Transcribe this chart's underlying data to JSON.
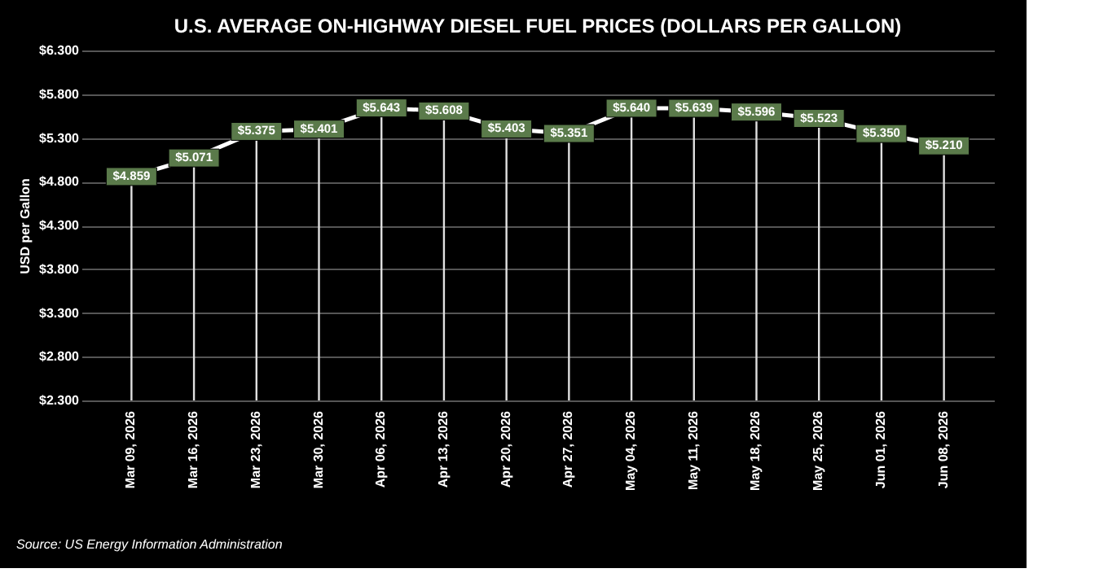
{
  "chart_data": {
    "type": "line",
    "title": "U.S. AVERAGE ON-HIGHWAY DIESEL FUEL PRICES (DOLLARS PER GALLON)",
    "ylabel": "USD per Gallon",
    "categories": [
      "Mar 09, 2026",
      "Mar 16, 2026",
      "Mar 23, 2026",
      "Mar 30, 2026",
      "Apr 06, 2026",
      "Apr 13, 2026",
      "Apr 20, 2026",
      "Apr 27, 2026",
      "May 04, 2026",
      "May 11, 2026",
      "May 18, 2026",
      "May 25, 2026",
      "Jun 01, 2026",
      "Jun 08, 2026"
    ],
    "series": [
      {
        "color": "#ffffff",
        "values": [
          4.859,
          5.071,
          5.375,
          5.401,
          5.643,
          5.608,
          5.403,
          5.351,
          5.64,
          5.639,
          5.596,
          5.523,
          5.35,
          5.21
        ],
        "value_labels": [
          "$4.859",
          "$5.071",
          "$5.375",
          "$5.401",
          "$5.643",
          "$5.608",
          "$5.403",
          "$5.351",
          "$5.640",
          "$5.639",
          "$5.596",
          "$5.523",
          "$5.350",
          "$5.210"
        ]
      }
    ],
    "ylim": [
      2.3,
      6.3
    ],
    "yticks": [
      {
        "value": 2.3,
        "label": "$2.300"
      },
      {
        "value": 2.8,
        "label": "$2.800"
      },
      {
        "value": 3.3,
        "label": "$3.300"
      },
      {
        "value": 3.8,
        "label": "$3.800"
      },
      {
        "value": 4.3,
        "label": "$4.300"
      },
      {
        "value": 4.8,
        "label": "$4.800"
      },
      {
        "value": 5.3,
        "label": "$5.300"
      },
      {
        "value": 5.8,
        "label": "$5.800"
      },
      {
        "value": 6.3,
        "label": "$6.300"
      }
    ],
    "grid": true,
    "line_style": "solid",
    "marker": "square",
    "annotations": [
      "Source: US Energy Information Administration"
    ]
  }
}
